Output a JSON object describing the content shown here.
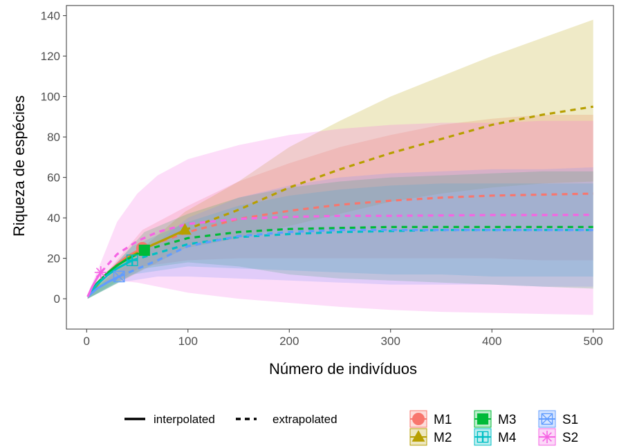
{
  "chart_data": {
    "type": "line",
    "xlabel": "Número de indivíduos",
    "ylabel": "Riqueza de espécies",
    "xlim": [
      -20,
      520
    ],
    "ylim": [
      -15,
      145
    ],
    "x_ticks": [
      0,
      100,
      200,
      300,
      400,
      500
    ],
    "y_ticks": [
      0,
      20,
      40,
      60,
      80,
      100,
      120,
      140
    ],
    "x_tick_labels": [
      "0",
      "100",
      "200",
      "300",
      "400",
      "500"
    ],
    "y_tick_labels": [
      "0",
      "20",
      "40",
      "60",
      "80",
      "100",
      "120",
      "140"
    ],
    "grid": false,
    "legend_position": "bottom",
    "linetype_legend": [
      {
        "key": "interpolated",
        "label": "interpolated",
        "dash": "solid"
      },
      {
        "key": "extrapolated",
        "label": "extrapolated",
        "dash": "dashed"
      }
    ],
    "series": [
      {
        "name": "M1",
        "color": "#f8766d",
        "marker": "circle",
        "observed": [
          55,
          25
        ],
        "interp_x": [
          1,
          10,
          20,
          30,
          40,
          55
        ],
        "interp_y": [
          1,
          7.5,
          12.5,
          17,
          21,
          25
        ],
        "extrap_x": [
          55,
          100,
          150,
          200,
          250,
          300,
          350,
          400,
          450,
          500
        ],
        "extrap_y": [
          25,
          33,
          39.5,
          43.5,
          46.5,
          48.5,
          50,
          51,
          51.5,
          52
        ],
        "band_x": [
          1,
          55,
          100,
          150,
          200,
          250,
          300,
          350,
          400,
          450,
          500
        ],
        "band_lo": [
          0,
          16,
          19,
          20,
          20,
          20,
          20,
          20,
          20,
          19,
          19
        ],
        "band_hi": [
          2,
          34,
          46,
          58,
          67,
          75,
          81,
          86,
          89,
          91,
          91
        ]
      },
      {
        "name": "M2",
        "color": "#b79f00",
        "marker": "triangle",
        "observed": [
          97,
          34
        ],
        "interp_x": [
          1,
          20,
          40,
          60,
          80,
          97
        ],
        "interp_y": [
          1,
          12.5,
          20,
          25.5,
          30,
          34
        ],
        "extrap_x": [
          97,
          150,
          200,
          250,
          300,
          350,
          400,
          450,
          500
        ],
        "extrap_y": [
          34,
          44,
          55,
          64,
          72,
          79,
          86,
          91,
          95
        ],
        "band_x": [
          1,
          97,
          150,
          200,
          250,
          300,
          350,
          400,
          450,
          500
        ],
        "band_lo": [
          0,
          25,
          30,
          36,
          42,
          48,
          52,
          55,
          57,
          58
        ],
        "band_hi": [
          2,
          43,
          58,
          75,
          88,
          100,
          110,
          120,
          129,
          138
        ]
      },
      {
        "name": "M3",
        "color": "#00ba38",
        "marker": "square",
        "observed": [
          57,
          24
        ],
        "interp_x": [
          1,
          10,
          20,
          30,
          40,
          57
        ],
        "interp_y": [
          1,
          7.5,
          12.5,
          16.5,
          19.5,
          24
        ],
        "extrap_x": [
          57,
          100,
          150,
          200,
          250,
          300,
          350,
          400,
          450,
          500
        ],
        "extrap_y": [
          24,
          30,
          33,
          34.5,
          35,
          35.5,
          35.5,
          35.5,
          35.5,
          35.5
        ],
        "band_x": [
          1,
          57,
          100,
          150,
          200,
          250,
          300,
          350,
          400,
          450,
          500
        ],
        "band_lo": [
          0,
          15,
          18,
          16,
          12,
          10,
          9,
          8,
          7,
          6,
          5
        ],
        "band_hi": [
          2,
          33,
          42,
          50,
          55,
          58,
          60,
          61,
          62,
          63,
          63
        ]
      },
      {
        "name": "M4",
        "color": "#00bfc4",
        "marker": "plus-square",
        "observed": [
          45,
          19
        ],
        "interp_x": [
          1,
          10,
          20,
          30,
          45
        ],
        "interp_y": [
          1,
          7,
          11.5,
          15,
          19
        ],
        "extrap_x": [
          45,
          100,
          150,
          200,
          250,
          300,
          350,
          400,
          450,
          500
        ],
        "extrap_y": [
          19,
          27,
          30.5,
          32,
          33,
          33.5,
          34,
          34,
          34,
          34
        ],
        "band_x": [
          1,
          45,
          100,
          150,
          200,
          250,
          300,
          350,
          400,
          450,
          500
        ],
        "band_lo": [
          0,
          12,
          16,
          15,
          14,
          13,
          12,
          12,
          11,
          11,
          11
        ],
        "band_hi": [
          2,
          26,
          38,
          46,
          51,
          54,
          56,
          57,
          57,
          57,
          57
        ]
      },
      {
        "name": "S1",
        "color": "#619cff",
        "marker": "box-x",
        "observed": [
          32,
          11
        ],
        "interp_x": [
          1,
          10,
          20,
          32
        ],
        "interp_y": [
          1,
          5,
          8,
          11
        ],
        "extrap_x": [
          32,
          70,
          100,
          150,
          200,
          250,
          300,
          350,
          400,
          450,
          500
        ],
        "extrap_y": [
          11,
          19,
          26,
          31,
          33,
          34,
          34,
          34,
          34,
          34,
          34
        ],
        "band_x": [
          1,
          32,
          70,
          100,
          150,
          200,
          250,
          300,
          350,
          400,
          450,
          500
        ],
        "band_lo": [
          0,
          8,
          11,
          11,
          10,
          9,
          8,
          7,
          7,
          7,
          6,
          6
        ],
        "band_hi": [
          2,
          14,
          28,
          40,
          50,
          56,
          60,
          62,
          63,
          64,
          64,
          65
        ]
      },
      {
        "name": "S2",
        "color": "#f564e3",
        "marker": "star",
        "observed": [
          14,
          13
        ],
        "interp_x": [
          1,
          5,
          10,
          14
        ],
        "interp_y": [
          1,
          5.5,
          10,
          13
        ],
        "extrap_x": [
          14,
          30,
          50,
          70,
          100,
          150,
          200,
          250,
          300,
          350,
          400,
          450,
          500
        ],
        "extrap_y": [
          13,
          22,
          28.5,
          33,
          37,
          39.5,
          40.5,
          41,
          41,
          41.2,
          41.4,
          41.4,
          41.5
        ],
        "band_x": [
          1,
          14,
          30,
          50,
          70,
          100,
          150,
          200,
          250,
          300,
          350,
          400,
          450,
          500
        ],
        "band_lo": [
          0,
          8,
          9,
          8,
          6,
          3,
          0,
          -2,
          -4,
          -5.5,
          -6.5,
          -7,
          -7.5,
          -8
        ],
        "band_hi": [
          2,
          18,
          38,
          52,
          61,
          69,
          76,
          81,
          84,
          86,
          87,
          87,
          88,
          88
        ]
      }
    ]
  }
}
